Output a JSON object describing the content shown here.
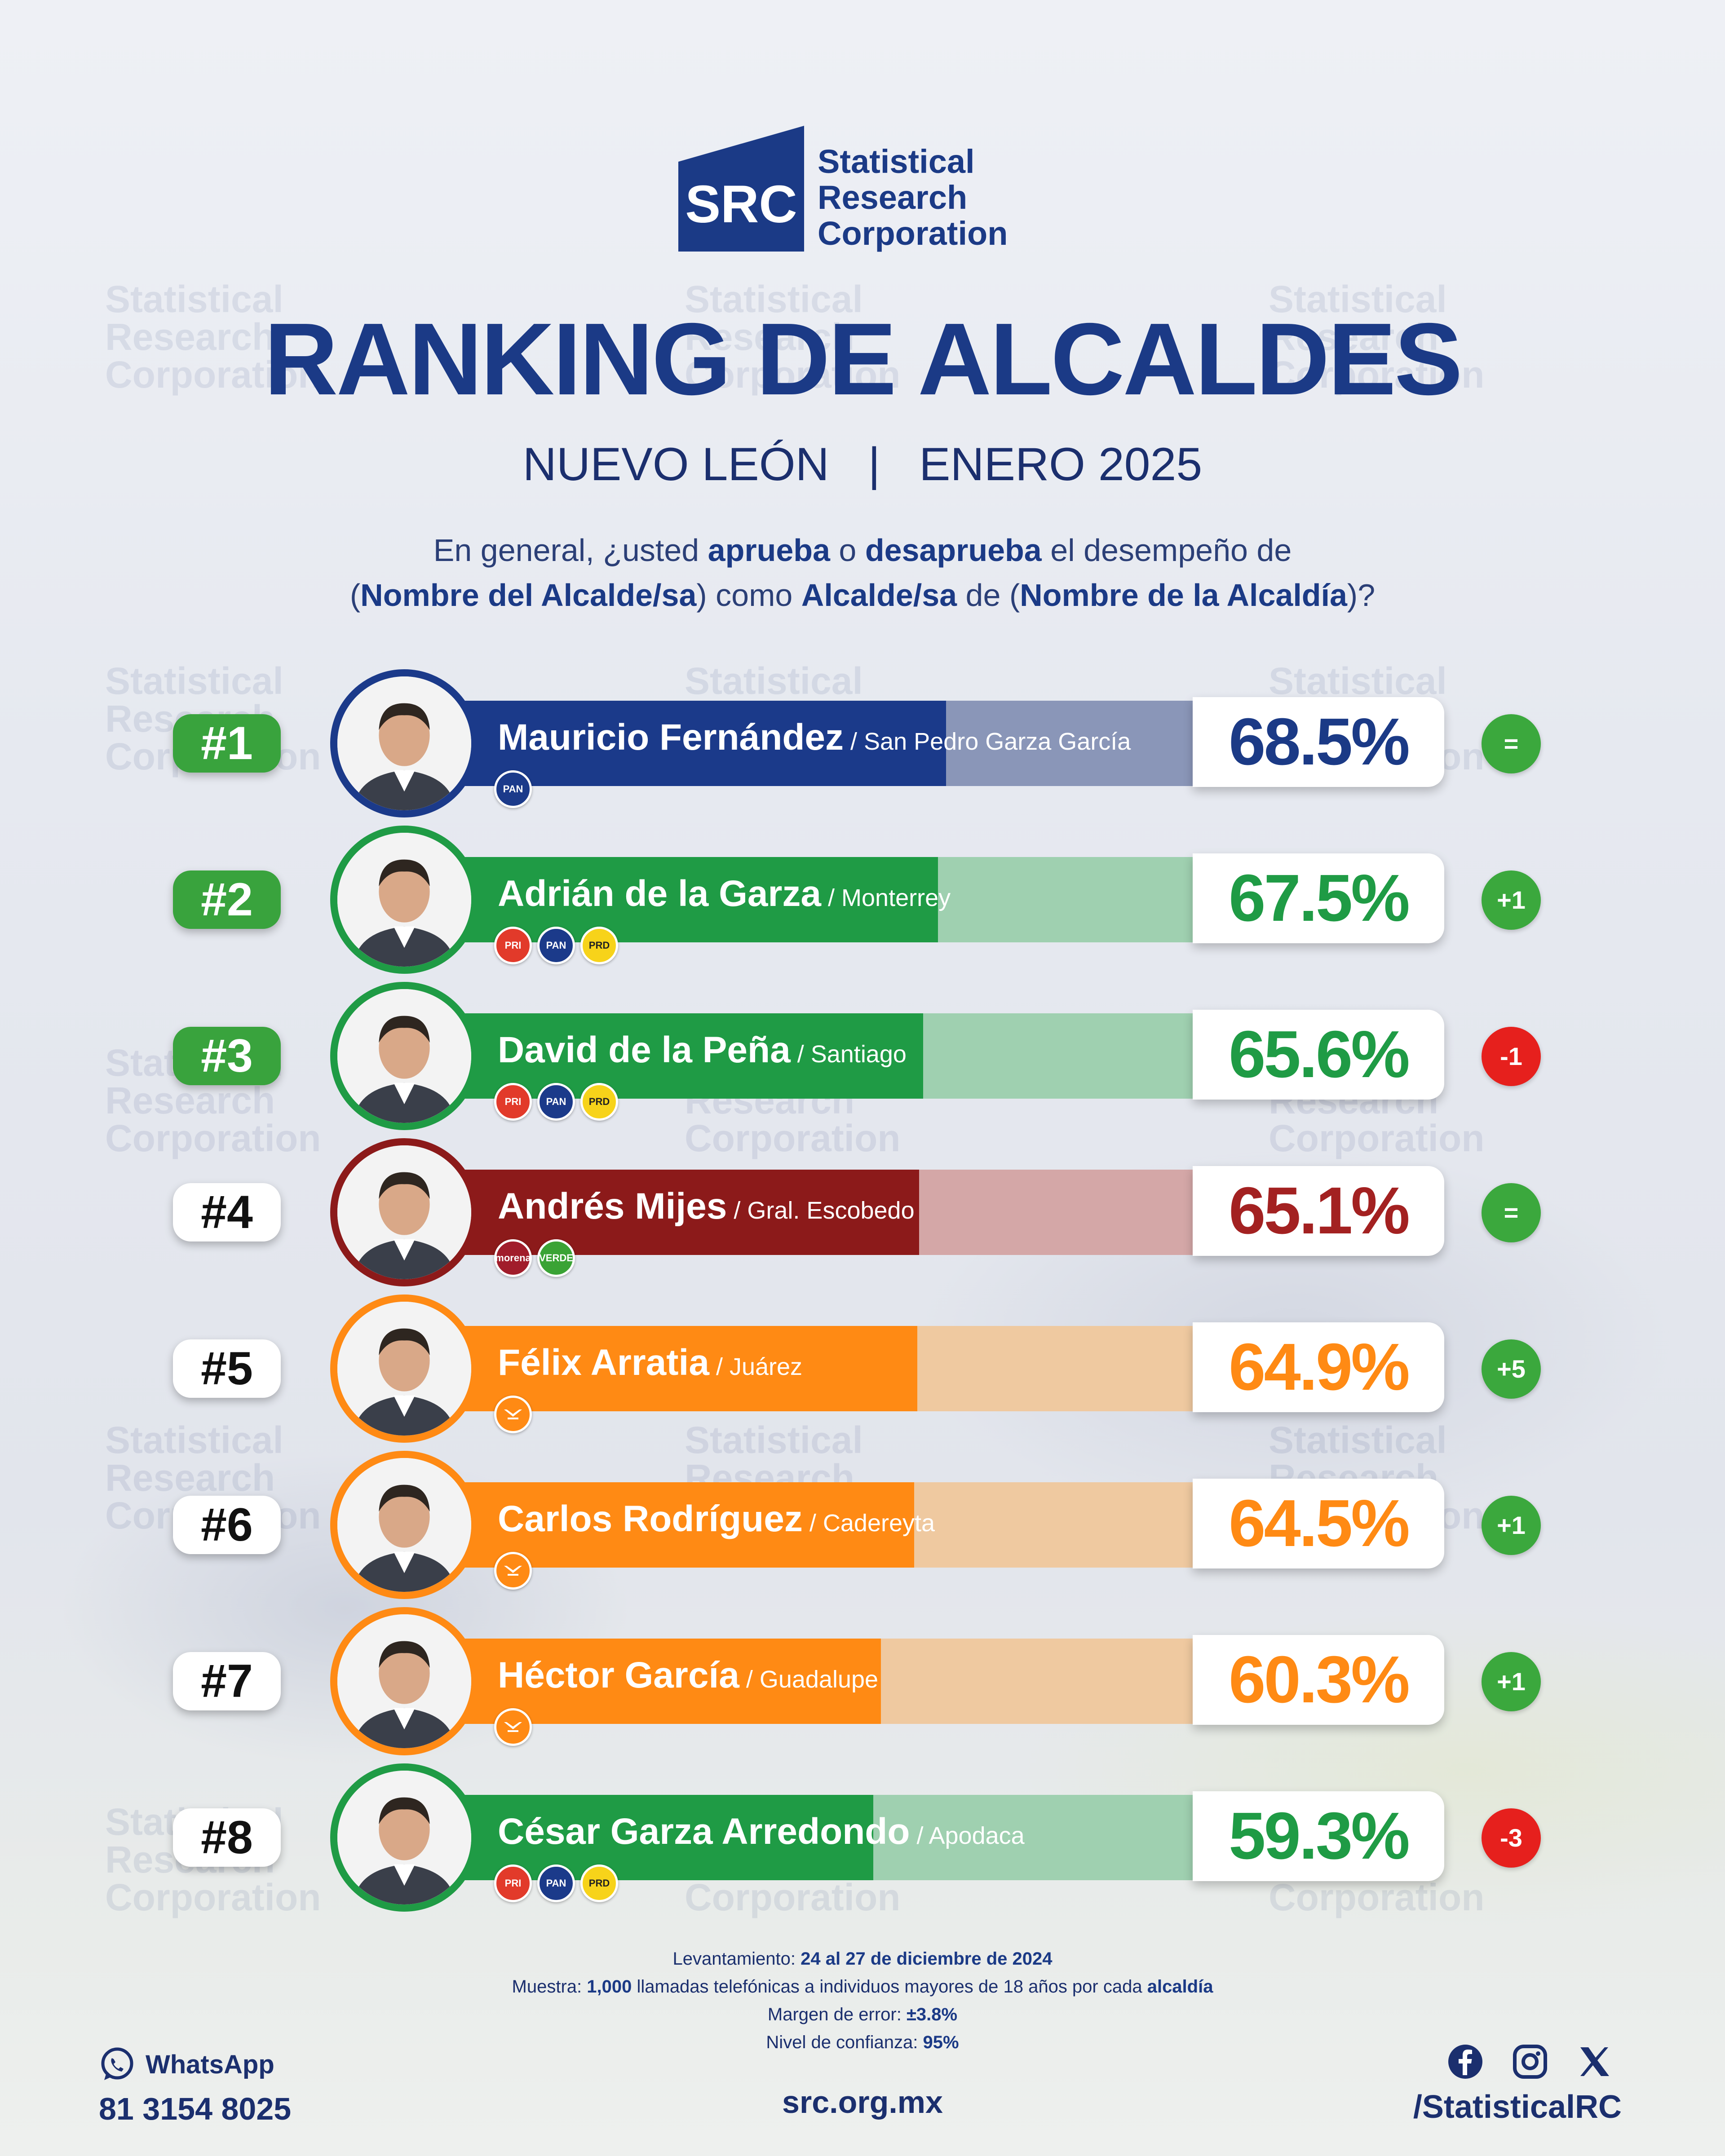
{
  "brand": {
    "logo_mark_text": "SRC",
    "name_lines": [
      "Statistical",
      "Research",
      "Corporation"
    ],
    "color": "#1b3a86"
  },
  "title": "RANKING DE ALCALDES",
  "subtitle": "NUEVO LEÓN   |   ENERO 2025",
  "question": {
    "line1": [
      {
        "t": "En general, ¿usted ",
        "b": false
      },
      {
        "t": "aprueba",
        "b": true
      },
      {
        "t": " o ",
        "b": false
      },
      {
        "t": "desaprueba",
        "b": true
      },
      {
        "t": " el desempeño de",
        "b": false
      }
    ],
    "line2": [
      {
        "t": "(",
        "b": false
      },
      {
        "t": "Nombre del Alcalde/sa",
        "b": true
      },
      {
        "t": ") como ",
        "b": false
      },
      {
        "t": "Alcalde/sa",
        "b": true
      },
      {
        "t": " de (",
        "b": false
      },
      {
        "t": "Nombre de la Alcaldía",
        "b": true
      },
      {
        "t": ")?",
        "b": false
      }
    ]
  },
  "chart_data": {
    "type": "bar",
    "title": "RANKING DE ALCALDES",
    "unit": "%",
    "ylim": [
      0,
      100
    ],
    "categories": [
      "Mauricio Fernández",
      "Adrián de la Garza",
      "David de la Peña",
      "Andrés Mijes",
      "Félix Arratia",
      "Carlos Rodríguez",
      "Héctor García",
      "César Garza Arredondo"
    ],
    "values": [
      68.5,
      67.5,
      65.6,
      65.1,
      64.9,
      64.5,
      60.3,
      59.3
    ],
    "rows": [
      {
        "rank": "#1",
        "name": "Mauricio Fernández",
        "municipality": " / San Pedro Garza García",
        "value": 68.5,
        "label": "68.5%",
        "change": "=",
        "change_type": "pos",
        "parties": [
          "PAN"
        ],
        "bar_color": "#1b3a8a",
        "rest_color": "#8a96b8",
        "text_color": "#1b3a86",
        "rank_top": true
      },
      {
        "rank": "#2",
        "name": "Adrián de la Garza",
        "municipality": " / Monterrey",
        "value": 67.5,
        "label": "67.5%",
        "change": "+1",
        "change_type": "pos",
        "parties": [
          "PRI",
          "PAN",
          "PRD"
        ],
        "bar_color": "#1f9b45",
        "rest_color": "#9fd0b0",
        "text_color": "#1f9b45",
        "rank_top": true
      },
      {
        "rank": "#3",
        "name": "David de la Peña",
        "municipality": " / Santiago",
        "value": 65.6,
        "label": "65.6%",
        "change": "-1",
        "change_type": "neg",
        "parties": [
          "PRI",
          "PAN",
          "PRD"
        ],
        "bar_color": "#1f9b45",
        "rest_color": "#9fd0b0",
        "text_color": "#1f9b45",
        "rank_top": true
      },
      {
        "rank": "#4",
        "name": "Andrés Mijes",
        "municipality": " / Gral. Escobedo",
        "value": 65.1,
        "label": "65.1%",
        "change": "=",
        "change_type": "pos",
        "parties": [
          "morena",
          "VERDE"
        ],
        "bar_color": "#8c1a1a",
        "rest_color": "#d4a7a7",
        "text_color": "#a32121",
        "rank_top": false
      },
      {
        "rank": "#5",
        "name": "Félix Arratia",
        "municipality": " / Juárez",
        "value": 64.9,
        "label": "64.9%",
        "change": "+5",
        "change_type": "pos",
        "parties": [
          "MC"
        ],
        "bar_color": "#ff8a14",
        "rest_color": "#efc9a0",
        "text_color": "#ff8a14",
        "rank_top": false
      },
      {
        "rank": "#6",
        "name": "Carlos Rodríguez",
        "municipality": " / Cadereyta",
        "value": 64.5,
        "label": "64.5%",
        "change": "+1",
        "change_type": "pos",
        "parties": [
          "MC"
        ],
        "bar_color": "#ff8a14",
        "rest_color": "#efc9a0",
        "text_color": "#ff8a14",
        "rank_top": false
      },
      {
        "rank": "#7",
        "name": "Héctor García",
        "municipality": " / Guadalupe",
        "value": 60.3,
        "label": "60.3%",
        "change": "+1",
        "change_type": "pos",
        "parties": [
          "MC"
        ],
        "bar_color": "#ff8a14",
        "rest_color": "#efc9a0",
        "text_color": "#ff8a14",
        "rank_top": false
      },
      {
        "rank": "#8",
        "name": "César Garza Arredondo",
        "municipality": " / Apodaca",
        "value": 59.3,
        "label": "59.3%",
        "change": "-3",
        "change_type": "neg",
        "parties": [
          "PRI",
          "PAN",
          "PRD"
        ],
        "bar_color": "#1f9b45",
        "rest_color": "#9fd0b0",
        "text_color": "#1f9b45",
        "rank_top": false
      }
    ]
  },
  "party_styles": {
    "PAN": {
      "bg": "#1b3a8a",
      "label": "PAN"
    },
    "PRI": {
      "bg": "#e23a2a",
      "label": "PRI"
    },
    "PRD": {
      "bg": "#f7d31a",
      "label": "PRD"
    },
    "morena": {
      "bg": "#a11d2b",
      "label": "morena"
    },
    "VERDE": {
      "bg": "#3aa335",
      "label": "VERDE"
    },
    "MC": {
      "bg": "#ff8a14",
      "label": ""
    }
  },
  "methodology": {
    "line1": [
      {
        "t": "Levantamiento: ",
        "b": false
      },
      {
        "t": "24 al 27 de diciembre de 2024",
        "b": true
      }
    ],
    "line2": [
      {
        "t": "Muestra: ",
        "b": false
      },
      {
        "t": "1,000",
        "b": true
      },
      {
        "t": " llamadas telefónicas a individuos mayores de 18 años por cada ",
        "b": false
      },
      {
        "t": "alcaldía",
        "b": true
      }
    ],
    "line3": [
      {
        "t": "Margen de error: ",
        "b": false
      },
      {
        "t": "±3.8%",
        "b": true
      }
    ],
    "line4": [
      {
        "t": "Nivel de confianza: ",
        "b": false
      },
      {
        "t": "95%",
        "b": true
      }
    ]
  },
  "footer": {
    "whatsapp_label": "WhatsApp",
    "phone": "81 3154 8025",
    "website": "src.org.mx",
    "social_handle": "/StatisticalRC",
    "social_icons": [
      "facebook-icon",
      "instagram-icon",
      "x-icon"
    ]
  }
}
